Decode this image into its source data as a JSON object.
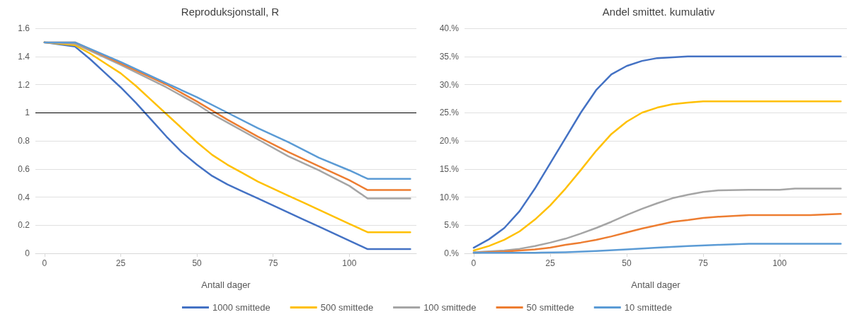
{
  "chart_data": [
    {
      "type": "line",
      "title": "Reproduksjonstall, R",
      "xlabel": "Antall dager",
      "xlim": [
        -3,
        122
      ],
      "xticks": [
        0,
        25,
        50,
        75,
        100
      ],
      "ylim": [
        0,
        1.6
      ],
      "yticks": [
        0,
        0.2,
        0.4,
        0.6,
        0.8,
        1,
        1.2,
        1.4,
        1.6
      ],
      "grid": "y",
      "legend": "bottom",
      "marker": "none",
      "line_style": "solid",
      "ref_lines": [
        {
          "axis": "y",
          "value": 1,
          "color": "#000000"
        }
      ],
      "series": [
        {
          "name": "1000 smittede",
          "color": "#4472c4",
          "x": [
            0,
            10,
            15,
            20,
            25,
            30,
            35,
            40,
            45,
            50,
            55,
            60,
            65,
            70,
            75,
            80,
            85,
            90,
            95,
            100,
            106,
            120
          ],
          "values": [
            1.5,
            1.47,
            1.38,
            1.28,
            1.18,
            1.07,
            0.95,
            0.83,
            0.72,
            0.63,
            0.55,
            0.49,
            0.44,
            0.39,
            0.34,
            0.29,
            0.24,
            0.19,
            0.14,
            0.09,
            0.03,
            0.03
          ]
        },
        {
          "name": "500 smittede",
          "color": "#ffc000",
          "x": [
            0,
            10,
            15,
            20,
            25,
            30,
            35,
            40,
            45,
            50,
            55,
            60,
            65,
            70,
            75,
            80,
            85,
            90,
            95,
            100,
            106,
            120
          ],
          "values": [
            1.5,
            1.48,
            1.42,
            1.35,
            1.28,
            1.19,
            1.09,
            0.99,
            0.89,
            0.79,
            0.7,
            0.63,
            0.57,
            0.51,
            0.46,
            0.41,
            0.36,
            0.31,
            0.26,
            0.21,
            0.15,
            0.15
          ]
        },
        {
          "name": "100 smittede",
          "color": "#a5a5a5",
          "x": [
            0,
            10,
            25,
            40,
            50,
            55,
            60,
            70,
            80,
            90,
            100,
            106,
            120
          ],
          "values": [
            1.5,
            1.49,
            1.34,
            1.18,
            1.06,
            0.99,
            0.93,
            0.81,
            0.69,
            0.59,
            0.48,
            0.39,
            0.39
          ]
        },
        {
          "name": "50 smittede",
          "color": "#ed7d31",
          "x": [
            0,
            10,
            25,
            40,
            50,
            60,
            70,
            80,
            90,
            100,
            106,
            120
          ],
          "values": [
            1.5,
            1.5,
            1.35,
            1.2,
            1.08,
            0.95,
            0.83,
            0.72,
            0.62,
            0.52,
            0.45,
            0.45
          ]
        },
        {
          "name": "10 smittede",
          "color": "#5b9bd5",
          "x": [
            0,
            10,
            25,
            40,
            50,
            60,
            70,
            80,
            90,
            100,
            106,
            120
          ],
          "values": [
            1.5,
            1.5,
            1.36,
            1.21,
            1.11,
            1.0,
            0.89,
            0.79,
            0.68,
            0.59,
            0.53,
            0.53
          ]
        }
      ]
    },
    {
      "type": "line",
      "title": "Andel smittet. kumulativ",
      "xlabel": "Antall dager",
      "xlim": [
        -3,
        122
      ],
      "xticks": [
        0,
        25,
        50,
        75,
        100
      ],
      "ylim": [
        0,
        40
      ],
      "yticks": [
        {
          "value": 0,
          "label": "0.%"
        },
        {
          "value": 5,
          "label": "5.%"
        },
        {
          "value": 10,
          "label": "10.%"
        },
        {
          "value": 15,
          "label": "15.%"
        },
        {
          "value": 20,
          "label": "20.%"
        },
        {
          "value": 25,
          "label": "25.%"
        },
        {
          "value": 30,
          "label": "30.%"
        },
        {
          "value": 35,
          "label": "35.%"
        },
        {
          "value": 40,
          "label": "40.%"
        }
      ],
      "grid": "y",
      "legend": "bottom",
      "marker": "none",
      "line_style": "solid",
      "series": [
        {
          "name": "1000 smittede",
          "color": "#4472c4",
          "x": [
            0,
            5,
            10,
            15,
            20,
            25,
            30,
            35,
            40,
            45,
            50,
            55,
            60,
            70,
            120
          ],
          "values": [
            1.0,
            2.5,
            4.5,
            7.5,
            11.5,
            16,
            20.5,
            25,
            29,
            31.8,
            33.3,
            34.2,
            34.7,
            35,
            35
          ]
        },
        {
          "name": "500 smittede",
          "color": "#ffc000",
          "x": [
            0,
            5,
            10,
            15,
            20,
            25,
            30,
            35,
            40,
            45,
            50,
            55,
            60,
            65,
            70,
            75,
            120
          ],
          "values": [
            0.5,
            1.3,
            2.4,
            3.9,
            6,
            8.5,
            11.5,
            14.8,
            18.2,
            21.2,
            23.4,
            25,
            25.9,
            26.5,
            26.8,
            27,
            27
          ]
        },
        {
          "name": "100 smittede",
          "color": "#a5a5a5",
          "x": [
            0,
            10,
            15,
            20,
            25,
            30,
            35,
            40,
            45,
            50,
            55,
            60,
            65,
            70,
            75,
            80,
            90,
            100,
            105,
            120
          ],
          "values": [
            0.2,
            0.5,
            0.8,
            1.3,
            1.9,
            2.6,
            3.5,
            4.5,
            5.6,
            6.8,
            7.9,
            8.9,
            9.8,
            10.4,
            10.9,
            11.2,
            11.3,
            11.3,
            11.5,
            11.5
          ]
        },
        {
          "name": "50 smittede",
          "color": "#ed7d31",
          "x": [
            0,
            10,
            20,
            25,
            30,
            35,
            40,
            45,
            50,
            55,
            60,
            65,
            70,
            75,
            80,
            90,
            110,
            120
          ],
          "values": [
            0.1,
            0.3,
            0.7,
            1.0,
            1.5,
            1.9,
            2.4,
            3.0,
            3.7,
            4.4,
            5.0,
            5.6,
            5.9,
            6.3,
            6.5,
            6.8,
            6.8,
            7.0
          ]
        },
        {
          "name": "10 smittede",
          "color": "#5b9bd5",
          "x": [
            0,
            20,
            30,
            40,
            50,
            60,
            70,
            80,
            90,
            100,
            120
          ],
          "values": [
            0.1,
            0.1,
            0.2,
            0.4,
            0.7,
            1.0,
            1.3,
            1.5,
            1.7,
            1.7,
            1.7
          ]
        }
      ]
    }
  ]
}
